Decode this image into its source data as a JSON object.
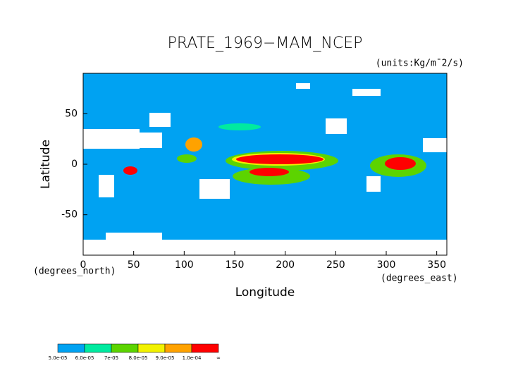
{
  "chart_data": {
    "type": "map",
    "title": "PRATE_1969−MAM_NCEP",
    "units": "(units:Kg/m¯2/s)",
    "x_label": "Longitude",
    "y_label": "Latitude",
    "x_units": "(degrees_east)",
    "y_units": "(degrees_north)",
    "xlim": [
      0,
      360
    ],
    "ylim": [
      -90,
      90
    ],
    "xticks": [
      0,
      50,
      100,
      150,
      200,
      250,
      300,
      350
    ],
    "yticks": [
      -50,
      0,
      50
    ],
    "colorbar": {
      "colors": [
        "#00a2f2",
        "#00eaa0",
        "#5cd400",
        "#f2f200",
        "#ffa200",
        "#ff0000"
      ],
      "levels": [
        {
          "value": 5e-05,
          "label": "5.0e-05"
        },
        {
          "value": 6e-05,
          "label": "6.0e-05"
        },
        {
          "value": 7e-05,
          "label": "7e-05"
        },
        {
          "value": 8e-05,
          "label": "8.0e-05"
        },
        {
          "value": 9e-05,
          "label": "9.0e-05"
        },
        {
          "value": 0.0001,
          "label": "1.0e-04"
        }
      ],
      "top_label": "∞"
    }
  }
}
